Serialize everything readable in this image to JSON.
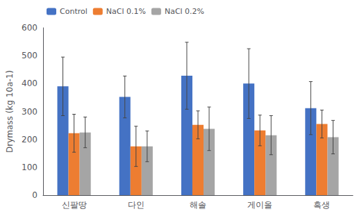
{
  "chart_data": {
    "type": "bar",
    "categories": [
      "신팔땅",
      "다인",
      "해솔",
      "게이올",
      "흑생"
    ],
    "series": [
      {
        "name": "Control",
        "color": "#4472C4",
        "values": [
          390,
          352,
          428,
          400,
          312
        ],
        "errors": [
          105,
          75,
          120,
          125,
          95
        ]
      },
      {
        "name": "NaCl 0.1%",
        "color": "#ED7D31",
        "values": [
          222,
          175,
          252,
          232,
          255
        ],
        "errors": [
          68,
          72,
          50,
          55,
          50
        ]
      },
      {
        "name": "NaCl 0.2%",
        "color": "#A5A5A5",
        "values": [
          225,
          175,
          238,
          215,
          208
        ],
        "errors": [
          55,
          55,
          78,
          70,
          60
        ]
      }
    ],
    "ylabel": "Drymass (kg 10a-1)",
    "ylim": [
      0,
      600
    ],
    "yticks": [
      0,
      100,
      200,
      300,
      400,
      500,
      600
    ],
    "legend": "upper left",
    "grid": false
  }
}
